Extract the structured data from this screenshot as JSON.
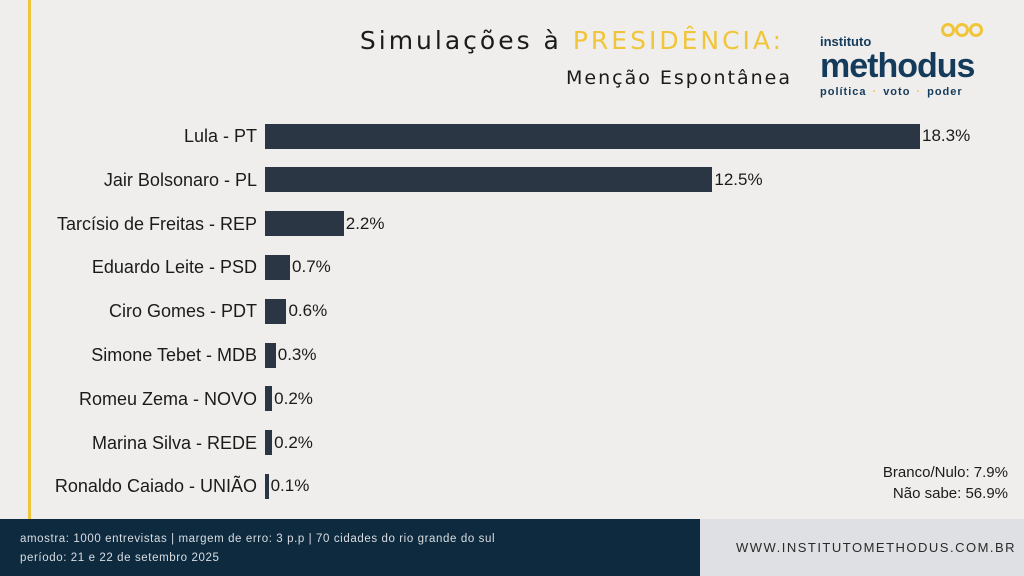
{
  "header": {
    "title_prefix": "Simulações à ",
    "title_accent": "PRESIDÊNCIA:",
    "subtitle": "Menção Espontânea"
  },
  "logo": {
    "top": "instituto",
    "name": "methodus",
    "tagline": [
      "política",
      "voto",
      "poder"
    ]
  },
  "chart_data": {
    "type": "bar",
    "orientation": "horizontal",
    "title": "Simulações à PRESIDÊNCIA: Menção Espontânea",
    "categories": [
      "Lula - PT",
      "Jair Bolsonaro - PL",
      "Tarcísio de Freitas - REP",
      "Eduardo Leite - PSD",
      "Ciro Gomes - PDT",
      "Simone Tebet - MDB",
      "Romeu Zema - NOVO",
      "Marina Silva - REDE",
      "Ronaldo Caiado - UNIÃO"
    ],
    "values": [
      18.3,
      12.5,
      2.2,
      0.7,
      0.6,
      0.3,
      0.2,
      0.2,
      0.1
    ],
    "labels": [
      "18.3%",
      "12.5%",
      "2.2%",
      "0.7%",
      "0.6%",
      "0.3%",
      "0.2%",
      "0.2%",
      "0.1%"
    ],
    "bar_color": "#2b3645"
  },
  "notes": {
    "branco": "Branco/Nulo: 7.9%",
    "nao_sabe": "Não sabe: 56.9%"
  },
  "footer": {
    "line1": "amostra: 1000 entrevistas | margem de erro: 3 p.p | 70 cidades do rio grande do sul",
    "line2": "período: 21 e 22 de setembro 2025",
    "website": "WWW.INSTITUTOMETHODUS.COM.BR"
  }
}
